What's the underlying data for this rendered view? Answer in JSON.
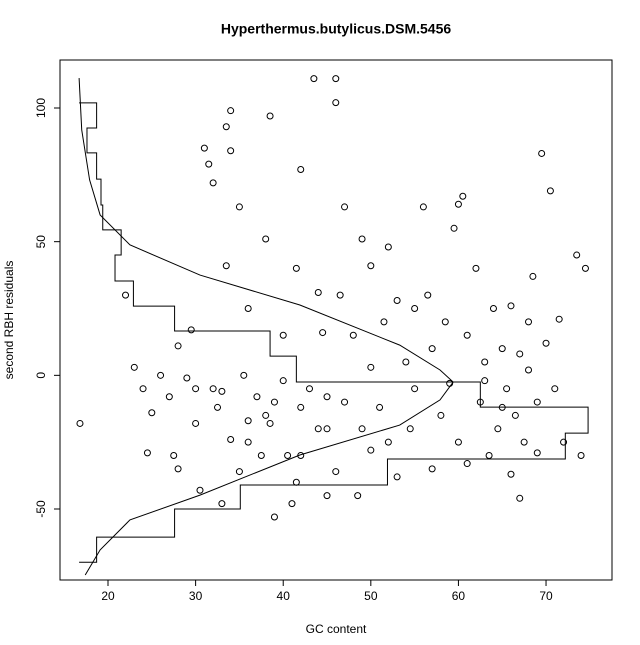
{
  "chart_data": {
    "type": "scatter",
    "title": "Hyperthermus.butylicus.DSM.5456",
    "x_label": "GC content",
    "y_label": "second RBH residuals",
    "xlim": [
      14.52,
      77.53
    ],
    "ylim": [
      -76.56,
      117.96
    ],
    "xticks": [
      20,
      30,
      40,
      50,
      60,
      70
    ],
    "yticks": [
      -50,
      0,
      50,
      100
    ],
    "color": "#000000",
    "x": [
      16.8,
      22,
      23,
      24,
      24.5,
      25,
      26,
      27,
      27.5,
      28,
      28,
      29,
      29.5,
      30,
      30.5,
      31,
      31.5,
      32,
      32,
      32.5,
      33,
      33.5,
      33.5,
      34,
      34,
      34,
      35,
      35,
      35.5,
      36,
      36,
      37,
      37.5,
      38,
      38.5,
      38.5,
      39,
      39,
      40,
      40.5,
      41,
      41.5,
      41.5,
      42,
      42,
      43,
      43.5,
      44,
      44,
      44.5,
      45,
      45,
      46,
      46,
      46,
      46.5,
      47,
      47,
      48,
      48.5,
      49,
      49,
      50,
      50,
      51,
      51.5,
      52,
      52,
      53,
      53,
      54,
      54.5,
      55,
      56,
      56.5,
      57,
      57,
      58,
      58.5,
      59,
      59.5,
      60,
      60,
      60.5,
      61,
      61,
      62,
      62.5,
      63,
      63.5,
      64,
      64.5,
      65,
      65.5,
      66,
      66,
      66.5,
      67,
      67,
      67.5,
      68,
      68,
      68.5,
      69,
      69,
      69.5,
      70,
      70.5,
      71,
      71.5,
      72,
      73.5,
      74,
      74.5,
      30,
      33,
      36,
      40,
      55,
      63,
      65,
      45,
      50,
      38,
      42
    ],
    "y": [
      -18,
      30,
      3,
      -5,
      -29,
      -14,
      0,
      -8,
      -30,
      -35,
      11,
      -1,
      17,
      -18,
      -43,
      85,
      79,
      72,
      -5,
      -12,
      -48,
      41,
      93,
      99,
      84,
      -24,
      63,
      -36,
      0,
      25,
      -17,
      -8,
      -30,
      51,
      97,
      -18,
      -53,
      -10,
      -2,
      -30,
      -48,
      40,
      -40,
      77,
      -12,
      -5,
      111,
      31,
      -20,
      16,
      -8,
      -45,
      111,
      102,
      -36,
      30,
      63,
      -10,
      15,
      -45,
      51,
      -20,
      3,
      41,
      -12,
      20,
      -25,
      48,
      28,
      -38,
      5,
      -20,
      -5,
      63,
      30,
      10,
      -35,
      -15,
      20,
      -3,
      55,
      -25,
      64,
      67,
      15,
      -33,
      40,
      -10,
      5,
      -30,
      25,
      -20,
      10,
      -5,
      26,
      -37,
      -15,
      8,
      -46,
      -25,
      2,
      20,
      37,
      -10,
      -29,
      83,
      12,
      69,
      -5,
      21,
      -25,
      45,
      -30,
      40,
      -5,
      -6,
      -25,
      15,
      25,
      -2,
      -12,
      -20,
      -28,
      -15,
      -30
    ],
    "lines": [
      {
        "x": [
          16.7,
          18.7,
          18.7,
          17.6,
          17.6,
          18.7,
          18.7,
          19.2,
          19.2,
          19.4,
          19.4,
          21.5,
          21.5,
          20.8,
          20.8,
          22.9,
          22.9,
          27.6,
          27.6,
          32.2,
          32.2,
          38.5,
          38.5,
          41.5,
          41.5,
          62.5,
          62.5,
          74.8,
          74.8,
          72.2,
          72.2,
          51.9,
          51.9,
          35.1,
          35.1,
          27.6,
          27.6,
          18.7,
          18.7,
          16.7
        ],
        "y": [
          101.9,
          101.9,
          92.5,
          92.5,
          83.2,
          83.2,
          73.4,
          73.4,
          63.7,
          63.7,
          54.4,
          54.4,
          45.0,
          45.0,
          35.3,
          35.3,
          25.9,
          25.9,
          16.6,
          16.6,
          16.6,
          16.6,
          7.2,
          7.2,
          -2.5,
          -2.5,
          -11.9,
          -11.9,
          -21.6,
          -21.6,
          -31.3,
          -31.3,
          -41.0,
          -41.0,
          -50.0,
          -50.0,
          -60.5,
          -60.5,
          -69.9,
          -69.9
        ]
      },
      {
        "x": [
          16.7,
          17.0,
          17.9,
          19.1,
          22.5,
          30.5,
          41.9,
          53.3,
          57.9,
          59.4,
          57.9,
          53.3,
          41.9,
          30.5,
          22.5,
          19.1,
          17.4
        ],
        "y": [
          111.2,
          91.8,
          73.1,
          60.0,
          48.8,
          37.5,
          26.3,
          11.3,
          2.0,
          -2.5,
          -9.2,
          -18.6,
          -29.8,
          -44.8,
          -54.1,
          -65.3,
          -74.7
        ]
      }
    ]
  }
}
